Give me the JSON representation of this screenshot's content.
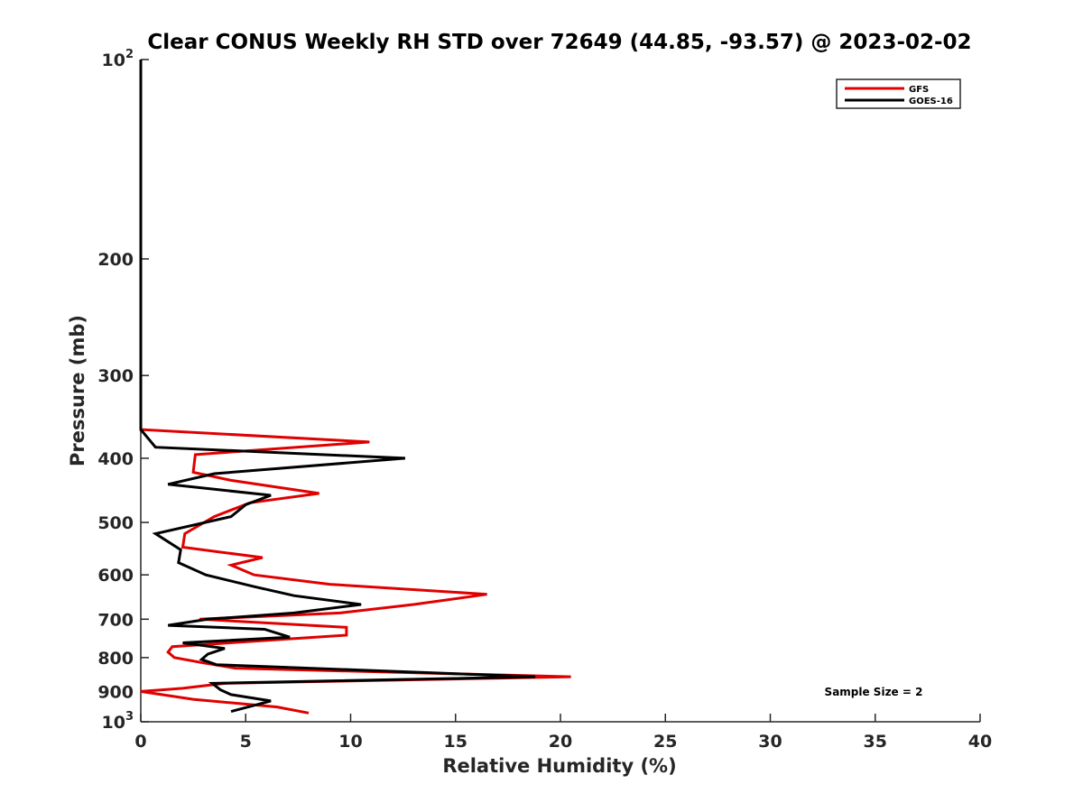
{
  "chart_data": {
    "type": "line",
    "title": "Clear CONUS Weekly RH STD over 72649 (44.85, -93.57) @ 2023-02-02",
    "xlabel": "Relative Humidity (%)",
    "ylabel": "Pressure (mb)",
    "xlim": [
      0,
      40
    ],
    "ylim": [
      100,
      1000
    ],
    "y_scale": "log",
    "y_reversed": true,
    "grid": false,
    "legend_position": "top-right",
    "x_ticks": [
      0,
      5,
      10,
      15,
      20,
      25,
      30,
      35,
      40
    ],
    "y_ticks": [
      {
        "value": 100,
        "base": "10",
        "exp": "2"
      },
      {
        "value": 200,
        "label": "200"
      },
      {
        "value": 300,
        "label": "300"
      },
      {
        "value": 400,
        "label": "400"
      },
      {
        "value": 500,
        "label": "500"
      },
      {
        "value": 600,
        "label": "600"
      },
      {
        "value": 700,
        "label": "700"
      },
      {
        "value": 800,
        "label": "800"
      },
      {
        "value": 900,
        "label": "900"
      },
      {
        "value": 1000,
        "base": "10",
        "exp": "3"
      }
    ],
    "series": [
      {
        "name": "GFS",
        "color": "#e00000",
        "points": [
          [
            0,
            100
          ],
          [
            0,
            362
          ],
          [
            10.9,
            378
          ],
          [
            2.6,
            395
          ],
          [
            2.5,
            420
          ],
          [
            4.3,
            432
          ],
          [
            8.5,
            452
          ],
          [
            5.2,
            467
          ],
          [
            3.5,
            490
          ],
          [
            2.1,
            520
          ],
          [
            2.0,
            545
          ],
          [
            5.8,
            565
          ],
          [
            4.3,
            580
          ],
          [
            5.4,
            600
          ],
          [
            9.0,
            620
          ],
          [
            16.5,
            642
          ],
          [
            13.0,
            665
          ],
          [
            9.5,
            685
          ],
          [
            2.8,
            700
          ],
          [
            9.8,
            720
          ],
          [
            9.8,
            740
          ],
          [
            7.0,
            750
          ],
          [
            1.5,
            770
          ],
          [
            1.3,
            785
          ],
          [
            1.6,
            800
          ],
          [
            3.0,
            815
          ],
          [
            4.5,
            830
          ],
          [
            20.5,
            855
          ],
          [
            4.0,
            875
          ],
          [
            2.0,
            890
          ],
          [
            0,
            900
          ],
          [
            2.5,
            925
          ],
          [
            6.5,
            950
          ],
          [
            8.0,
            970
          ]
        ]
      },
      {
        "name": "GOES-16",
        "color": "#000000",
        "points": [
          [
            0,
            100
          ],
          [
            0,
            362
          ],
          [
            0.7,
            385
          ],
          [
            12.6,
            400
          ],
          [
            3.5,
            422
          ],
          [
            1.3,
            438
          ],
          [
            6.2,
            455
          ],
          [
            5.0,
            470
          ],
          [
            4.3,
            490
          ],
          [
            0.7,
            520
          ],
          [
            1.9,
            550
          ],
          [
            1.8,
            575
          ],
          [
            3.1,
            600
          ],
          [
            5.4,
            625
          ],
          [
            7.3,
            645
          ],
          [
            10.5,
            665
          ],
          [
            7.3,
            685
          ],
          [
            3.2,
            700
          ],
          [
            1.3,
            715
          ],
          [
            5.9,
            725
          ],
          [
            7.1,
            745
          ],
          [
            2.0,
            760
          ],
          [
            4.0,
            775
          ],
          [
            3.2,
            790
          ],
          [
            2.9,
            805
          ],
          [
            3.6,
            820
          ],
          [
            18.8,
            855
          ],
          [
            3.4,
            875
          ],
          [
            3.8,
            895
          ],
          [
            4.3,
            910
          ],
          [
            6.2,
            930
          ],
          [
            4.3,
            965
          ]
        ]
      }
    ],
    "annotation": "Sample Size = 2"
  }
}
